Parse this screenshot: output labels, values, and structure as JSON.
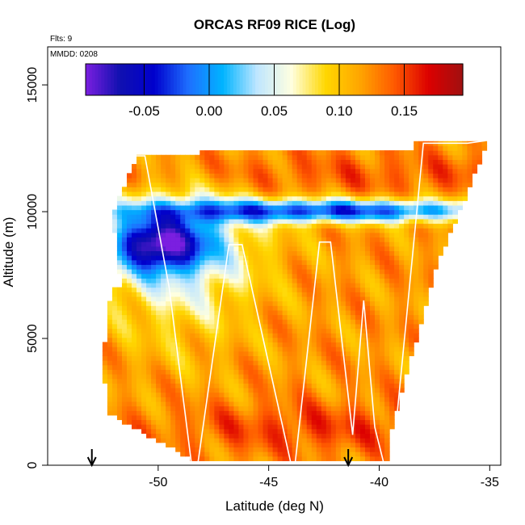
{
  "chart_data": {
    "type": "heatmap",
    "title": "ORCAS RF09 RICE (Log)",
    "subtitle_left": "Flts: 9",
    "inset_label": "MMDD: 0208",
    "xlabel": "Latitude (deg N)",
    "ylabel": "Altitude (m)",
    "xlim": [
      -55,
      -34.5
    ],
    "ylim": [
      0,
      16500
    ],
    "xticks": [
      -50,
      -45,
      -40,
      -35
    ],
    "yticks": [
      0,
      5000,
      10000,
      15000
    ],
    "colorbar": {
      "range": [
        -0.095,
        0.195
      ],
      "ticks": [
        -0.05,
        0.0,
        0.05,
        0.1,
        0.15
      ],
      "tick_labels": [
        "-0.05",
        "0.00",
        "0.05",
        "0.10",
        "0.15"
      ],
      "colors": [
        "#7b1fe0",
        "#1010b0",
        "#0000cd",
        "#1e6fff",
        "#00b4ff",
        "#bfe6ff",
        "#ffffe0",
        "#ffd700",
        "#ffa500",
        "#ff5a00",
        "#dc0000",
        "#a01010"
      ]
    },
    "flight_track": [
      [
        -51.0,
        12200
      ],
      [
        -50.6,
        12200
      ],
      [
        -49.5,
        7000
      ],
      [
        -48.5,
        100
      ],
      [
        -48.2,
        100
      ],
      [
        -46.8,
        8700
      ],
      [
        -46.2,
        8700
      ],
      [
        -44.0,
        100
      ],
      [
        -43.8,
        100
      ],
      [
        -42.7,
        8800
      ],
      [
        -42.2,
        8800
      ],
      [
        -41.2,
        1200
      ],
      [
        -40.7,
        6500
      ],
      [
        -40.2,
        1500
      ],
      [
        -39.8,
        100
      ],
      [
        -39.4,
        100
      ],
      [
        -38.0,
        12700
      ],
      [
        -36.0,
        12700
      ],
      [
        -35.2,
        12800
      ]
    ],
    "markers_lat": [
      -53.0,
      -41.4
    ]
  }
}
